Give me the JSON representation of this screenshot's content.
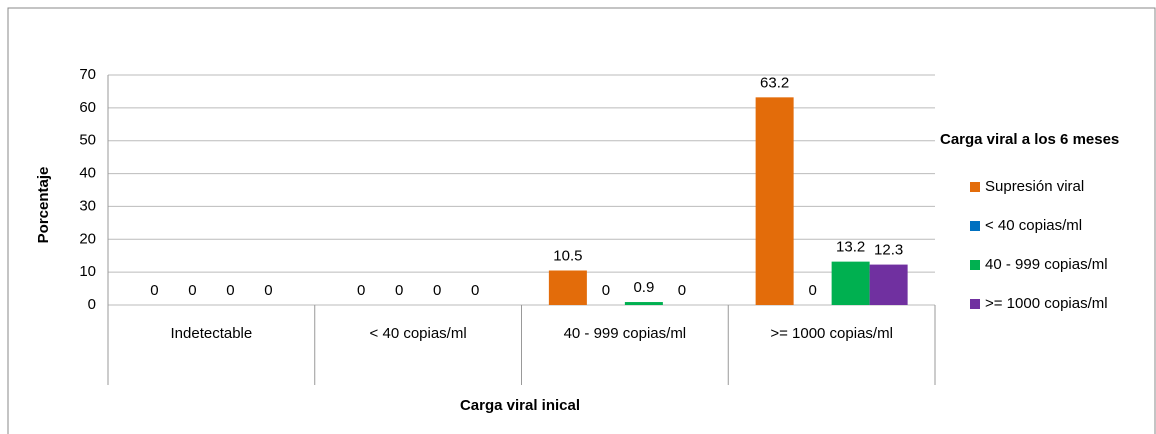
{
  "chart_data": {
    "type": "bar",
    "y_label": "Porcentaje",
    "x_label": "Carga viral inical",
    "legend_title": "Carga viral a los 6 meses",
    "categories": [
      "Indetectable",
      "< 40  copias/ml",
      "40 - 999  copias/ml",
      ">= 1000 copias/ml"
    ],
    "series": [
      {
        "name": "Supresión viral",
        "color": "#e36c0a",
        "values": [
          0,
          0,
          10.5,
          63.2
        ]
      },
      {
        "name": "< 40  copias/ml",
        "color": "#0070c0",
        "values": [
          0,
          0,
          0,
          0
        ]
      },
      {
        "name": "40 - 999  copias/ml",
        "color": "#00b050",
        "values": [
          0,
          0,
          0.9,
          13.2
        ]
      },
      {
        "name": ">= 1000 copias/ml",
        "color": "#7030a0",
        "values": [
          0,
          0,
          0,
          12.3
        ]
      }
    ],
    "ylim": [
      0,
      70
    ],
    "yticks": [
      0,
      10,
      20,
      30,
      40,
      50,
      60,
      70
    ],
    "grid": true,
    "legend": "right"
  }
}
